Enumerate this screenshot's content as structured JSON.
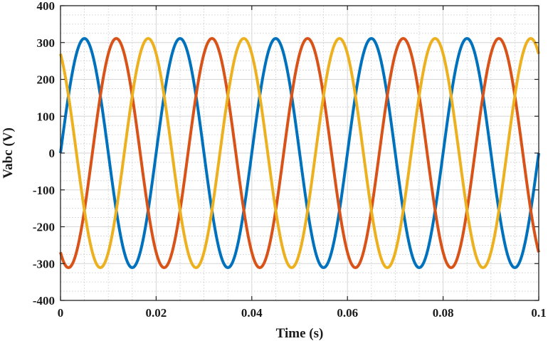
{
  "chart_data": {
    "type": "line",
    "title": "",
    "xlabel": "Time (s)",
    "ylabel": "Vabc (V)",
    "xlim": [
      0,
      0.1
    ],
    "ylim": [
      -400,
      400
    ],
    "x_ticks": [
      0,
      0.02,
      0.04,
      0.06,
      0.08,
      0.1
    ],
    "x_tick_labels": [
      "0",
      "0.02",
      "0.04",
      "0.06",
      "0.08",
      "0.1"
    ],
    "y_ticks": [
      -400,
      -300,
      -200,
      -100,
      0,
      100,
      200,
      300,
      400
    ],
    "y_tick_labels": [
      "-400",
      "-300",
      "-200",
      "-100",
      "0",
      "100",
      "200",
      "300",
      "400"
    ],
    "grid": true,
    "minor_grid": true,
    "legend": "none",
    "waveform": {
      "amplitude_v": 311,
      "frequency_hz": 50,
      "phase_shift_deg": 120
    },
    "series": [
      {
        "color": "#0072BD",
        "phase_deg": 0
      },
      {
        "color": "#D95319",
        "phase_deg": -120
      },
      {
        "color": "#EDB120",
        "phase_deg": 120
      }
    ]
  }
}
